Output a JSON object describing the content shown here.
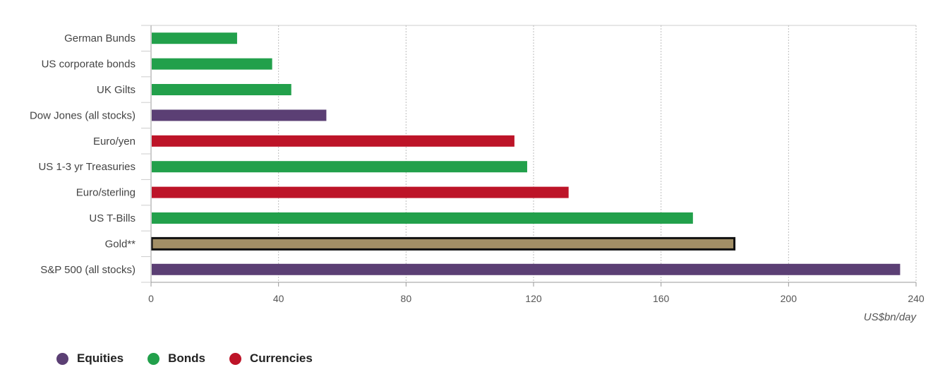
{
  "chart_data": {
    "type": "bar",
    "orientation": "horizontal",
    "categories": [
      "German Bunds",
      "US corporate bonds",
      "UK Gilts",
      "Dow Jones (all stocks)",
      "Euro/yen",
      "US 1-3 yr Treasuries",
      "Euro/sterling",
      "US T-Bills",
      "Gold**",
      "S&P 500 (all stocks)"
    ],
    "values": [
      27,
      38,
      44,
      55,
      114,
      118,
      131,
      170,
      183,
      235
    ],
    "groups": [
      "Bonds",
      "Bonds",
      "Bonds",
      "Equities",
      "Currencies",
      "Bonds",
      "Currencies",
      "Bonds",
      "Gold",
      "Equities"
    ],
    "xlim": [
      0,
      240
    ],
    "xticks": [
      0,
      40,
      80,
      120,
      160,
      200,
      240
    ],
    "xlabel": "US$bn/day",
    "grid": true,
    "legend_position": "bottom-left",
    "highlight": "Gold**"
  },
  "legend": [
    {
      "label": "Equities",
      "color": "#5b3f74"
    },
    {
      "label": "Bonds",
      "color": "#22a04b"
    },
    {
      "label": "Currencies",
      "color": "#bd1428"
    }
  ],
  "colors": {
    "Equities": "#5b3f74",
    "Bonds": "#22a04b",
    "Currencies": "#bd1428",
    "Gold": "#a28f66",
    "highlight_border": "#111111"
  }
}
